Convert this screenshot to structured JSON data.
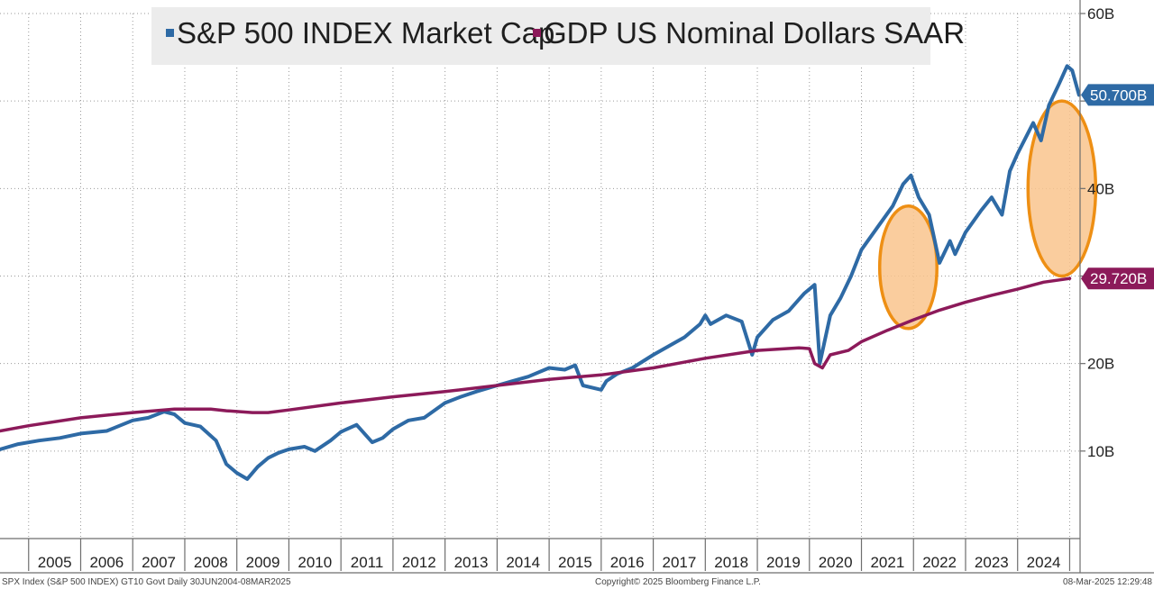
{
  "chart_data": {
    "type": "line",
    "title": "",
    "xlabel": "",
    "ylabel": "",
    "ylim": [
      0,
      60
    ],
    "xlim": [
      2004.45,
      2025.2
    ],
    "y_ticks": [
      {
        "value": 10,
        "label": "10B"
      },
      {
        "value": 20,
        "label": "20B"
      },
      {
        "value": 30,
        "label": ""
      },
      {
        "value": 40,
        "label": "40B"
      },
      {
        "value": 50,
        "label": ""
      },
      {
        "value": 60,
        "label": "60B"
      }
    ],
    "x_ticks": [
      "2005",
      "2006",
      "2007",
      "2008",
      "2009",
      "2010",
      "2011",
      "2012",
      "2013",
      "2014",
      "2015",
      "2016",
      "2017",
      "2018",
      "2019",
      "2020",
      "2021",
      "2022",
      "2023",
      "2024"
    ],
    "legend": [
      "S&P 500 INDEX Market Cap",
      "GDP US Nominal Dollars SAAR"
    ],
    "colors": {
      "sp500": "#2e6aa5",
      "gdp": "#8c1a5a",
      "highlight_fill": "#f9c48d",
      "highlight_stroke": "#ee8f14"
    },
    "series": [
      {
        "name": "S&P 500 INDEX Market Cap",
        "last_value_label": "50.700B",
        "x": [
          2004.45,
          2004.8,
          2005.2,
          2005.6,
          2006.0,
          2006.5,
          2007.0,
          2007.3,
          2007.6,
          2007.8,
          2008.0,
          2008.3,
          2008.6,
          2008.8,
          2009.0,
          2009.2,
          2009.4,
          2009.6,
          2009.8,
          2010.0,
          2010.3,
          2010.5,
          2010.8,
          2011.0,
          2011.3,
          2011.6,
          2011.8,
          2012.0,
          2012.3,
          2012.6,
          2013.0,
          2013.3,
          2013.6,
          2014.0,
          2014.3,
          2014.6,
          2015.0,
          2015.3,
          2015.5,
          2015.65,
          2016.0,
          2016.1,
          2016.3,
          2016.6,
          2017.0,
          2017.3,
          2017.6,
          2017.9,
          2018.0,
          2018.1,
          2018.4,
          2018.7,
          2018.9,
          2019.0,
          2019.3,
          2019.6,
          2019.9,
          2020.1,
          2020.2,
          2020.4,
          2020.6,
          2020.8,
          2021.0,
          2021.3,
          2021.6,
          2021.8,
          2021.95,
          2022.1,
          2022.3,
          2022.5,
          2022.7,
          2022.8,
          2023.0,
          2023.3,
          2023.5,
          2023.7,
          2023.85,
          2024.0,
          2024.3,
          2024.45,
          2024.6,
          2024.8,
          2024.95,
          2025.05,
          2025.18
        ],
        "values": [
          10.2,
          10.8,
          11.2,
          11.5,
          12.0,
          12.3,
          13.5,
          13.8,
          14.5,
          14.2,
          13.2,
          12.8,
          11.2,
          8.5,
          7.5,
          6.8,
          8.2,
          9.2,
          9.8,
          10.2,
          10.5,
          10.0,
          11.2,
          12.2,
          13.0,
          11.0,
          11.5,
          12.5,
          13.5,
          13.8,
          15.5,
          16.2,
          16.8,
          17.5,
          18.0,
          18.5,
          19.5,
          19.3,
          19.8,
          17.5,
          17.0,
          18.0,
          18.8,
          19.5,
          21.0,
          22.0,
          23.0,
          24.5,
          25.5,
          24.5,
          25.5,
          24.8,
          21.0,
          23.0,
          25.0,
          26.0,
          28.0,
          29.0,
          20.0,
          25.5,
          27.5,
          30.0,
          33.0,
          35.5,
          38.0,
          40.5,
          41.5,
          39.0,
          37.0,
          31.5,
          34.0,
          32.5,
          35.0,
          37.5,
          39.0,
          37.0,
          42.0,
          44.0,
          47.5,
          45.5,
          49.5,
          52.0,
          54.0,
          53.5,
          50.7
        ]
      },
      {
        "name": "GDP US Nominal Dollars SAAR",
        "last_value_label": "29.720B",
        "x": [
          2004.45,
          2005.0,
          2006.0,
          2007.0,
          2007.8,
          2008.5,
          2008.8,
          2009.3,
          2009.6,
          2010.0,
          2011.0,
          2012.0,
          2013.0,
          2014.0,
          2015.0,
          2016.0,
          2017.0,
          2018.0,
          2019.0,
          2019.8,
          2020.0,
          2020.1,
          2020.25,
          2020.4,
          2020.75,
          2021.0,
          2021.5,
          2022.0,
          2022.5,
          2023.0,
          2023.5,
          2024.0,
          2024.5,
          2025.0
        ],
        "values": [
          12.3,
          12.9,
          13.8,
          14.4,
          14.8,
          14.8,
          14.6,
          14.4,
          14.4,
          14.7,
          15.5,
          16.2,
          16.8,
          17.5,
          18.2,
          18.7,
          19.5,
          20.6,
          21.5,
          21.8,
          21.7,
          20.0,
          19.5,
          21.0,
          21.5,
          22.5,
          23.8,
          25.0,
          26.1,
          27.0,
          27.8,
          28.5,
          29.3,
          29.72
        ]
      }
    ],
    "highlights": [
      {
        "cx": 2021.9,
        "cy": 31.0,
        "rx": 0.55,
        "ry": 7.0
      },
      {
        "cx": 2024.85,
        "cy": 40.0,
        "rx": 0.65,
        "ry": 10.0
      }
    ]
  },
  "footer": {
    "left": "SPX Index (S&P 500 INDEX) GT10  Govt  Daily 30JUN2004-08MAR2025",
    "center": "Copyright© 2025 Bloomberg Finance L.P.",
    "right": "08-Mar-2025 12:29:48"
  }
}
